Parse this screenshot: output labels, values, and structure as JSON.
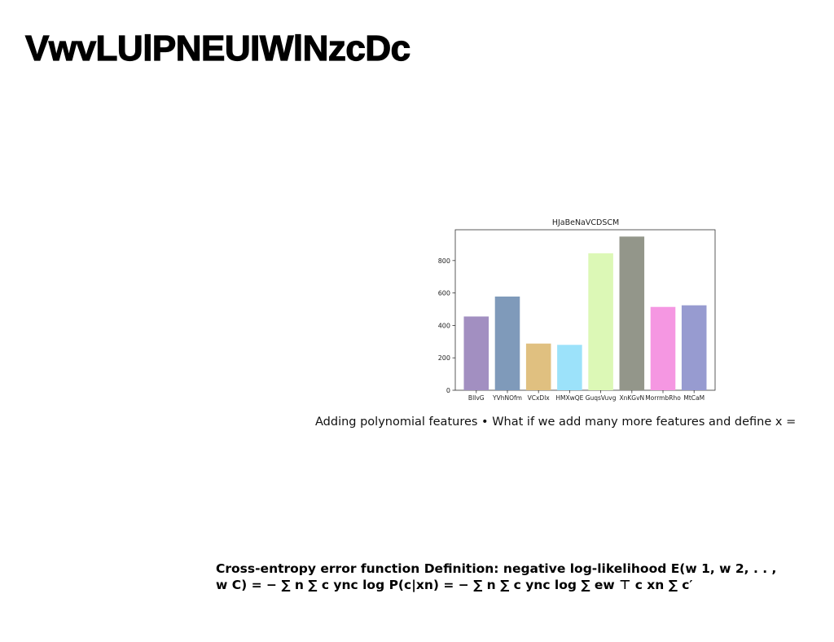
{
  "slide": {
    "title": "VwvLUlPNEUIWlNzcDc",
    "caption_1": "Adding polynomial features • What if we add many more features and define x =",
    "caption_2": "Cross-entropy error function Definition: negative log-likelihood E(w 1, w 2, . . , w C) = − ∑ n ∑ c ync log P(c|xn) = − ∑ n ∑ c ync log ∑ ew ⊤ c xn ∑ c′"
  },
  "chart_data": {
    "type": "bar",
    "title": "HJaBeNaVCDSCM",
    "xlabel": "",
    "ylabel": "",
    "categories": [
      "BlIvG",
      "YVhNOfm",
      "VCxDlx",
      "HMXwQE",
      "GuqsVuvg",
      "XnKGvN",
      "MorrmbRho",
      "MtCaM"
    ],
    "values": [
      455,
      578,
      288,
      280,
      845,
      948,
      514,
      524
    ],
    "colors": [
      "#a28fc1",
      "#7f9aba",
      "#e0c080",
      "#9ce2fa",
      "#dcf8b6",
      "#93968a",
      "#f597e2",
      "#979bd0"
    ],
    "ylim": [
      0,
      990
    ],
    "yticks": [
      0,
      200,
      400,
      600,
      800
    ],
    "grid": false
  }
}
